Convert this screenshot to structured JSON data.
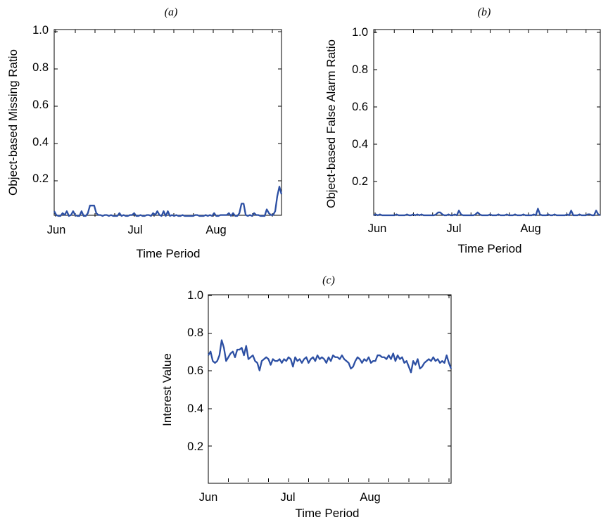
{
  "chart_data": [
    {
      "type": "line",
      "panel": "(a)",
      "xlabel": "Time Period",
      "ylabel": "Object-based Missing Ratio",
      "x_ticks": [
        "Jun",
        "Jul",
        "Aug"
      ],
      "x_minor_ticks": 7,
      "ylim": [
        0,
        1
      ],
      "yticks": [
        "1.0",
        "0.8",
        "0.6",
        "0.4",
        "0.2"
      ],
      "grid": false,
      "color": "#2c4fa3",
      "series": [
        {
          "values": [
            0.04,
            0.02,
            0.01,
            0.01,
            0.03,
            0.02,
            0.04,
            0.01,
            0.02,
            0.04,
            0.02,
            0.01,
            0.01,
            0.04,
            0.01,
            0.01,
            0.03,
            0.07,
            0.07,
            0.07,
            0.03,
            0.02,
            0.02,
            0.01,
            0.02,
            0.02,
            0.01,
            0.02,
            0.01,
            0.01,
            0.01,
            0.03,
            0.01,
            0.02,
            0.01,
            0.01,
            0.02,
            0.02,
            0.03,
            0.01,
            0.01,
            0.02,
            0.01,
            0.01,
            0.02,
            0.02,
            0.01,
            0.03,
            0.02,
            0.04,
            0.02,
            0.01,
            0.04,
            0.01,
            0.04,
            0.01,
            0.02,
            0.01,
            0.02,
            0.01,
            0.01,
            0.02,
            0.01,
            0.01,
            0.01,
            0.01,
            0.01,
            0.02,
            0.02,
            0.01,
            0.01,
            0.01,
            0.02,
            0.01,
            0.02,
            0.01,
            0.03,
            0.01,
            0.01,
            0.02,
            0.02,
            0.02,
            0.02,
            0.03,
            0.01,
            0.03,
            0.01,
            0.01,
            0.03,
            0.08,
            0.08,
            0.02,
            0.01,
            0.02,
            0.01,
            0.03,
            0.02,
            0.02,
            0.01,
            0.01,
            0.01,
            0.05,
            0.03,
            0.02,
            0.02,
            0.04,
            0.12,
            0.17,
            0.13
          ]
        }
      ]
    },
    {
      "type": "line",
      "panel": "(b)",
      "xlabel": "Time Period",
      "ylabel": "Object-based False Alarm Ratio",
      "x_ticks": [
        "Jun",
        "Jul",
        "Aug"
      ],
      "x_minor_ticks": 7,
      "ylim": [
        0,
        1
      ],
      "yticks": [
        "1.0",
        "0.8",
        "0.6",
        "0.4",
        "0.2"
      ],
      "grid": false,
      "color": "#2c4fa3",
      "series": [
        {
          "values": [
            0.01,
            0.02,
            0.01,
            0.02,
            0.01,
            0.01,
            0.01,
            0.01,
            0.01,
            0.01,
            0.01,
            0.02,
            0.01,
            0.01,
            0.01,
            0.01,
            0.02,
            0.01,
            0.01,
            0.02,
            0.01,
            0.02,
            0.01,
            0.02,
            0.01,
            0.01,
            0.01,
            0.01,
            0.01,
            0.01,
            0.02,
            0.03,
            0.03,
            0.02,
            0.01,
            0.01,
            0.02,
            0.01,
            0.01,
            0.02,
            0.01,
            0.04,
            0.02,
            0.01,
            0.01,
            0.01,
            0.01,
            0.01,
            0.01,
            0.02,
            0.03,
            0.02,
            0.01,
            0.01,
            0.01,
            0.01,
            0.02,
            0.01,
            0.01,
            0.01,
            0.02,
            0.01,
            0.01,
            0.01,
            0.02,
            0.01,
            0.01,
            0.01,
            0.02,
            0.01,
            0.01,
            0.01,
            0.02,
            0.01,
            0.01,
            0.01,
            0.01,
            0.02,
            0.01,
            0.05,
            0.02,
            0.01,
            0.01,
            0.01,
            0.02,
            0.01,
            0.01,
            0.02,
            0.01,
            0.01,
            0.01,
            0.01,
            0.01,
            0.02,
            0.01,
            0.04,
            0.01,
            0.01,
            0.01,
            0.02,
            0.01,
            0.01,
            0.01,
            0.02,
            0.02,
            0.01,
            0.01,
            0.04,
            0.02,
            0.01
          ]
        }
      ]
    },
    {
      "type": "line",
      "panel": "(c)",
      "xlabel": "Time Period",
      "ylabel": "Interest Value",
      "x_ticks": [
        "Jun",
        "Jul",
        "Aug"
      ],
      "x_minor_ticks": 7,
      "ylim": [
        0,
        1
      ],
      "yticks": [
        "1.0",
        "0.8",
        "0.6",
        "0.4",
        "0.2"
      ],
      "grid": false,
      "color": "#2c4fa3",
      "series": [
        {
          "values": [
            0.68,
            0.7,
            0.65,
            0.64,
            0.65,
            0.68,
            0.76,
            0.72,
            0.65,
            0.67,
            0.69,
            0.7,
            0.67,
            0.71,
            0.71,
            0.72,
            0.68,
            0.73,
            0.66,
            0.67,
            0.68,
            0.65,
            0.64,
            0.6,
            0.65,
            0.66,
            0.67,
            0.66,
            0.63,
            0.66,
            0.65,
            0.65,
            0.66,
            0.64,
            0.66,
            0.65,
            0.67,
            0.66,
            0.62,
            0.67,
            0.65,
            0.66,
            0.64,
            0.66,
            0.67,
            0.64,
            0.66,
            0.67,
            0.65,
            0.68,
            0.66,
            0.67,
            0.66,
            0.64,
            0.67,
            0.65,
            0.68,
            0.67,
            0.67,
            0.66,
            0.68,
            0.66,
            0.65,
            0.64,
            0.61,
            0.62,
            0.65,
            0.67,
            0.66,
            0.64,
            0.66,
            0.65,
            0.67,
            0.64,
            0.65,
            0.65,
            0.68,
            0.68,
            0.67,
            0.67,
            0.66,
            0.68,
            0.66,
            0.69,
            0.65,
            0.68,
            0.66,
            0.67,
            0.64,
            0.65,
            0.62,
            0.59,
            0.65,
            0.63,
            0.66,
            0.61,
            0.62,
            0.64,
            0.65,
            0.66,
            0.65,
            0.67,
            0.65,
            0.66,
            0.64,
            0.65,
            0.64,
            0.68,
            0.64,
            0.61
          ]
        }
      ]
    }
  ]
}
